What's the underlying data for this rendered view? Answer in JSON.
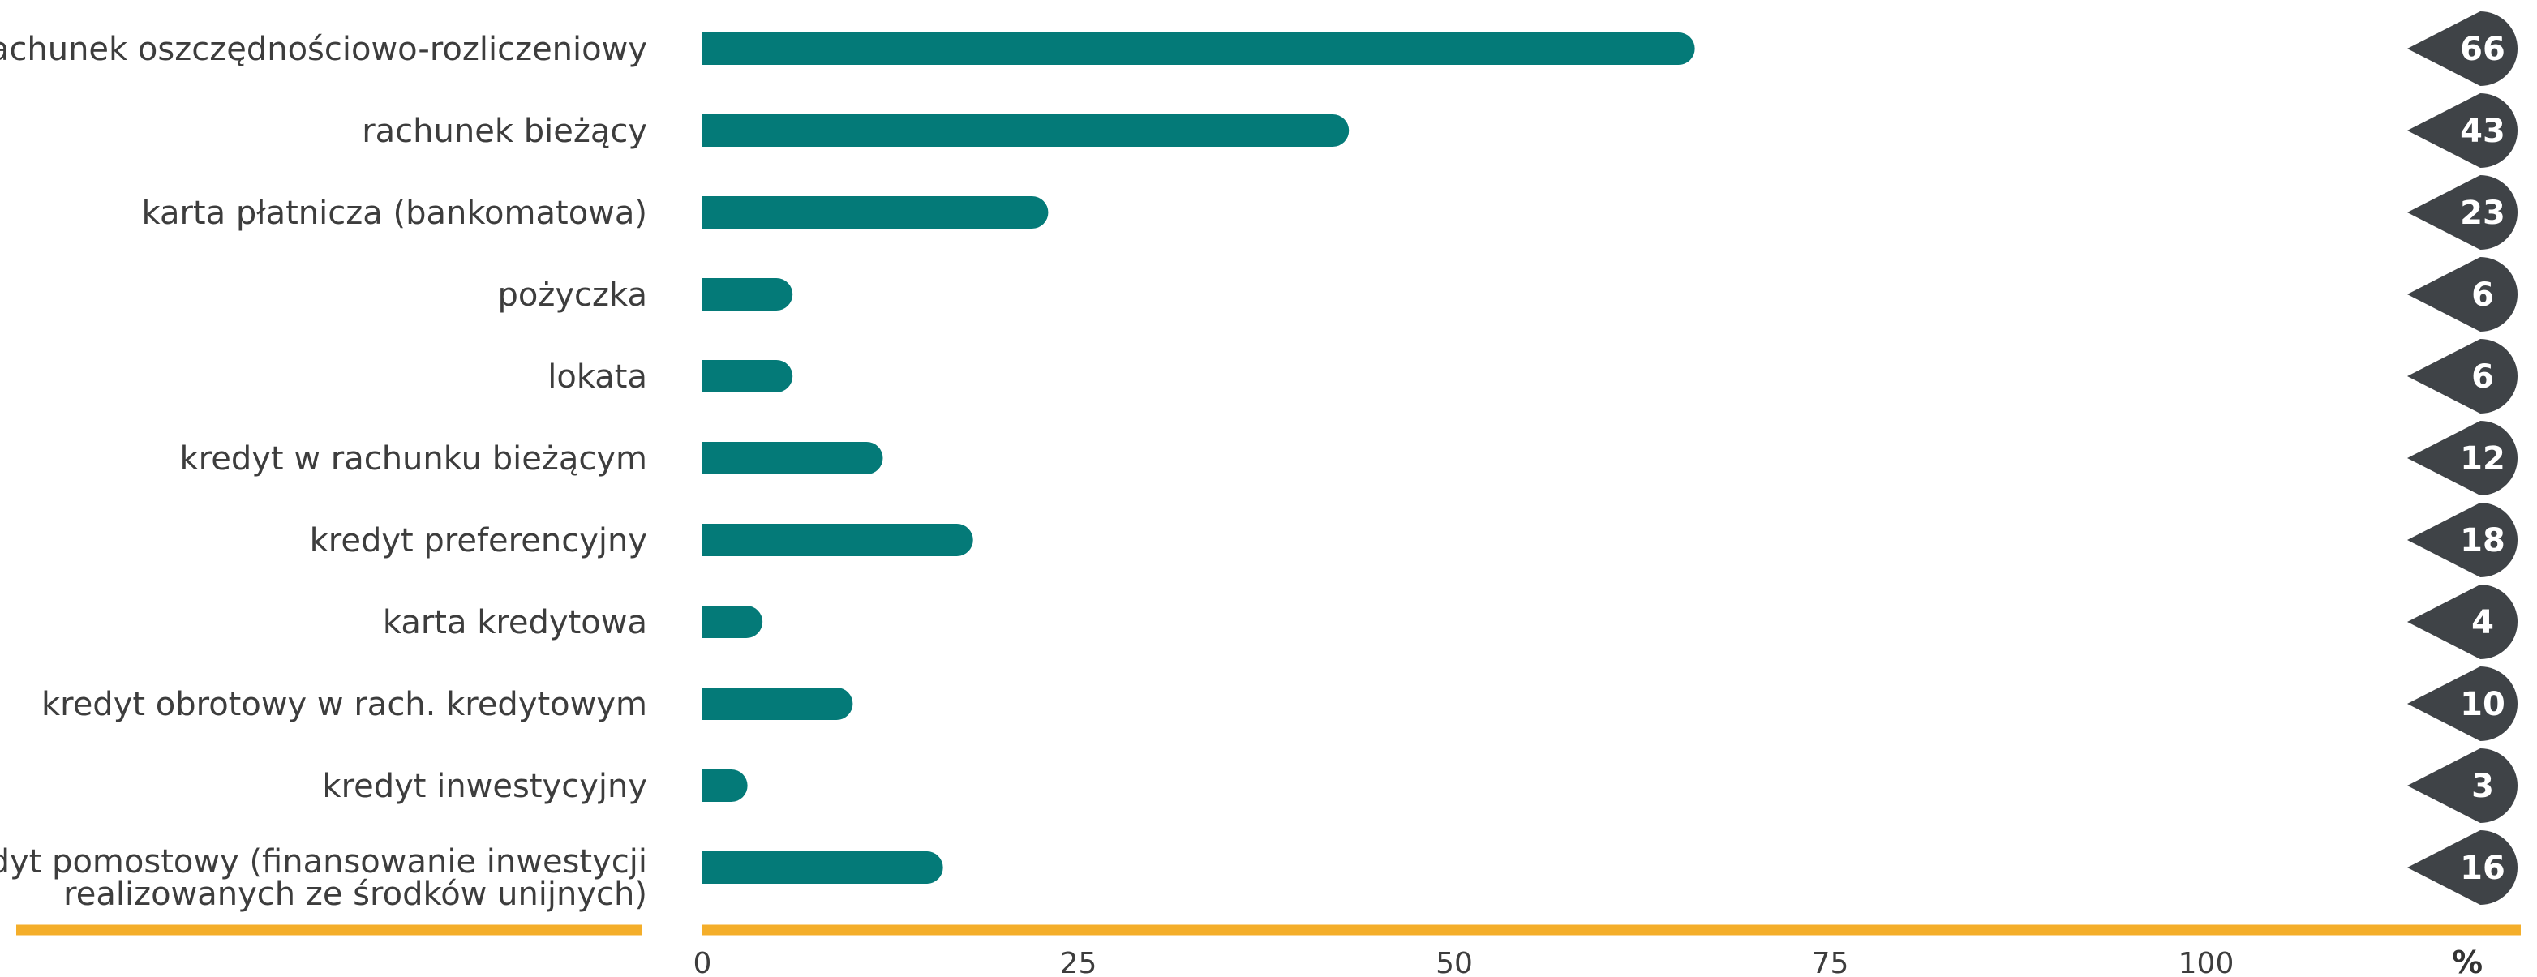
{
  "chart_data": {
    "type": "bar",
    "orientation": "horizontal",
    "categories": [
      "rachunek oszczędnościowo-rozliczeniowy",
      "rachunek bieżący",
      "karta płatnicza (bankomatowa)",
      "pożyczka",
      "lokata",
      "kredyt w rachunku bieżącym",
      "kredyt preferencyjny",
      "karta kredytowa",
      "kredyt obrotowy w rach. kredytowym",
      "kredyt inwestycyjny",
      "kredyt pomostowy (finansowanie inwestycji realizowanych ze środków unijnych)"
    ],
    "category_lines": [
      [
        "rachunek oszczędnościowo-rozliczeniowy"
      ],
      [
        "rachunek bieżący"
      ],
      [
        "karta płatnicza (bankomatowa)"
      ],
      [
        "pożyczka"
      ],
      [
        "lokata"
      ],
      [
        "kredyt w rachunku bieżącym"
      ],
      [
        "kredyt preferencyjny"
      ],
      [
        "karta kredytowa"
      ],
      [
        "kredyt obrotowy w rach. kredytowym"
      ],
      [
        "kredyt inwestycyjny"
      ],
      [
        "kredyt pomostowy (finansowanie inwestycji",
        "realizowanych ze środków unijnych)"
      ]
    ],
    "values": [
      66,
      43,
      23,
      6,
      6,
      12,
      18,
      4,
      10,
      3,
      16
    ],
    "data_labels": [
      "66",
      "43",
      "23",
      "6",
      "6",
      "12",
      "18",
      "4",
      "10",
      "3",
      "16"
    ],
    "xlim": [
      0,
      100
    ],
    "xticks": [
      0,
      25,
      50,
      75,
      100
    ],
    "xtick_labels": [
      "0",
      "25",
      "50",
      "75",
      "100"
    ],
    "unit_label": "%",
    "title": "",
    "xlabel": "",
    "ylabel": "",
    "grid": false,
    "colors": {
      "bar": "#047a78",
      "axis": "#f4ae2a",
      "badge": "#3f4347",
      "badge_text": "#ffffff",
      "label_text": "#3d3d3d"
    }
  }
}
